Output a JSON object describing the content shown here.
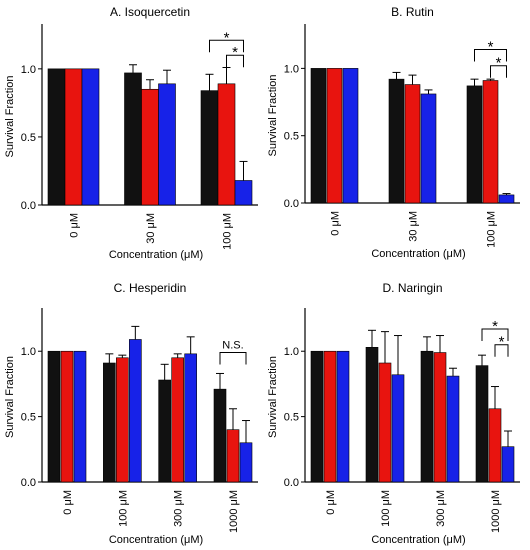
{
  "colors": {
    "black": "#111111",
    "red": "#e8140f",
    "blue": "#1722e8",
    "error": "#000000"
  },
  "chart_data": [
    {
      "type": "bar",
      "title": "A. Isoquercetin",
      "xlabel": "Concentration (μM)",
      "ylabel": "Survival Fraction",
      "ylim": [
        0,
        1.3
      ],
      "yticks": [
        "0.0",
        "0.5",
        "1.0"
      ],
      "categories": [
        "0 μM",
        "30 μM",
        "100 μM"
      ],
      "series": [
        {
          "values": [
            1.0,
            0.97,
            0.84
          ],
          "errors": [
            0.0,
            0.06,
            0.12
          ]
        },
        {
          "values": [
            1.0,
            0.85,
            0.89
          ],
          "errors": [
            0.0,
            0.07,
            0.12
          ]
        },
        {
          "values": [
            1.0,
            0.89,
            0.18
          ],
          "errors": [
            0.0,
            0.1,
            0.14
          ]
        }
      ],
      "annotations": [
        {
          "type": "bracket",
          "from_series": 0,
          "to_series": 2,
          "category": 2,
          "y": 1.21,
          "text": "*"
        },
        {
          "type": "bracket",
          "from_series": 1,
          "to_series": 2,
          "category": 2,
          "y": 1.1,
          "text": "*"
        }
      ]
    },
    {
      "type": "bar",
      "title": "B. Rutin",
      "xlabel": "Concentration (μM)",
      "ylabel": "Survival Fraction",
      "ylim": [
        0,
        1.3
      ],
      "yticks": [
        "0.0",
        "0.5",
        "1.0"
      ],
      "categories": [
        "0 μM",
        "30 μM",
        "100 μM"
      ],
      "series": [
        {
          "values": [
            1.0,
            0.92,
            0.87
          ],
          "errors": [
            0.0,
            0.05,
            0.05
          ]
        },
        {
          "values": [
            1.0,
            0.88,
            0.91
          ],
          "errors": [
            0.0,
            0.07,
            0.01
          ]
        },
        {
          "values": [
            1.0,
            0.81,
            0.06
          ],
          "errors": [
            0.0,
            0.03,
            0.01
          ]
        }
      ],
      "annotations": [
        {
          "type": "bracket",
          "from_series": 0,
          "to_series": 2,
          "category": 2,
          "y": 1.14,
          "text": "*"
        },
        {
          "type": "bracket",
          "from_series": 1,
          "to_series": 2,
          "category": 2,
          "y": 1.02,
          "text": "*"
        }
      ]
    },
    {
      "type": "bar",
      "title": "C. Hesperidin",
      "xlabel": "Concentration (μM)",
      "ylabel": "Survival Fraction",
      "ylim": [
        0,
        1.3
      ],
      "yticks": [
        "0.0",
        "0.5",
        "1.0"
      ],
      "categories": [
        "0 μM",
        "100 μM",
        "300 μM",
        "1000 μM"
      ],
      "series": [
        {
          "values": [
            1.0,
            0.91,
            0.78,
            0.71
          ],
          "errors": [
            0.0,
            0.07,
            0.12,
            0.12
          ]
        },
        {
          "values": [
            1.0,
            0.95,
            0.95,
            0.4
          ],
          "errors": [
            0.0,
            0.02,
            0.03,
            0.16
          ]
        },
        {
          "values": [
            1.0,
            1.09,
            0.98,
            0.3
          ],
          "errors": [
            0.0,
            0.1,
            0.13,
            0.17
          ]
        }
      ],
      "annotations": [
        {
          "type": "bracket",
          "from_series": 0,
          "to_series": 2,
          "category": 3,
          "y": 0.99,
          "text": "N.S."
        }
      ]
    },
    {
      "type": "bar",
      "title": "D. Naringin",
      "xlabel": "Concentration (μM)",
      "ylabel": "Survival Fraction",
      "ylim": [
        0,
        1.3
      ],
      "yticks": [
        "0.0",
        "0.5",
        "1.0"
      ],
      "categories": [
        "0 μM",
        "100 μM",
        "300 μM",
        "1000 μM"
      ],
      "series": [
        {
          "values": [
            1.0,
            1.03,
            1.0,
            0.89
          ],
          "errors": [
            0.0,
            0.13,
            0.11,
            0.08
          ]
        },
        {
          "values": [
            1.0,
            0.91,
            0.99,
            0.56
          ],
          "errors": [
            0.0,
            0.24,
            0.13,
            0.17
          ]
        },
        {
          "values": [
            1.0,
            0.82,
            0.81,
            0.27
          ],
          "errors": [
            0.0,
            0.3,
            0.06,
            0.12
          ]
        }
      ],
      "annotations": [
        {
          "type": "bracket",
          "from_series": 0,
          "to_series": 2,
          "category": 3,
          "y": 1.17,
          "text": "*"
        },
        {
          "type": "bracket",
          "from_series": 1,
          "to_series": 2,
          "category": 3,
          "y": 1.05,
          "text": "*"
        }
      ]
    }
  ]
}
